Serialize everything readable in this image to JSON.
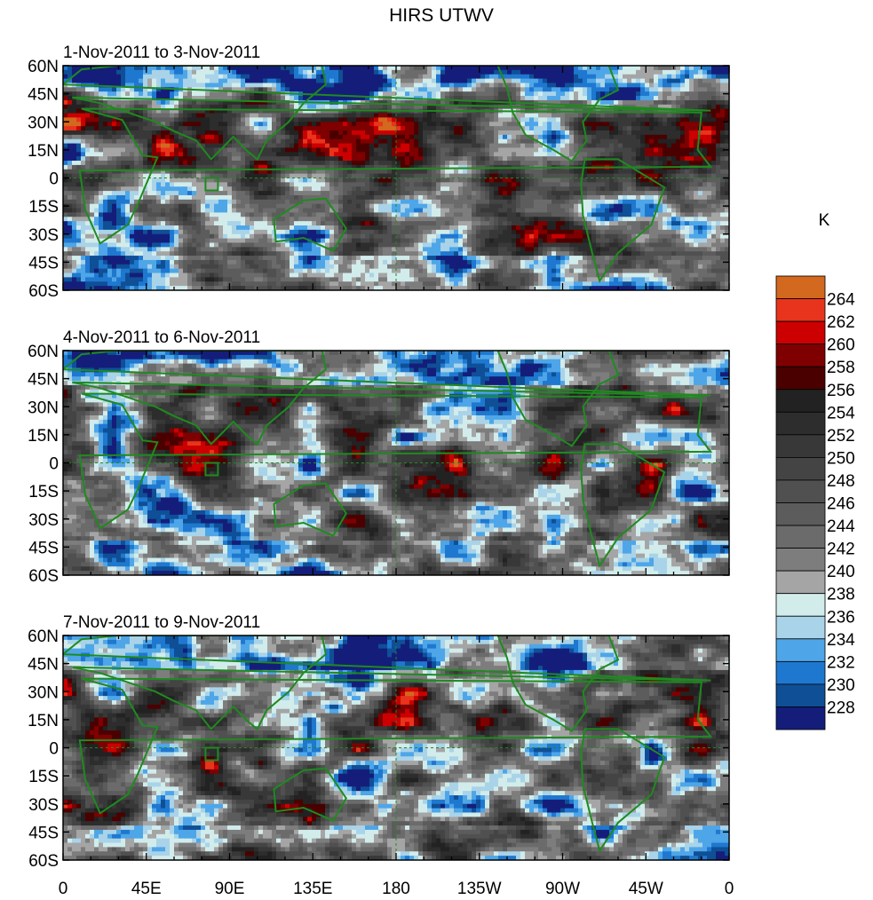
{
  "title": "HIRS UTWV",
  "panels": [
    {
      "label": "1-Nov-2011 to 3-Nov-2011",
      "seed": 3
    },
    {
      "label": "4-Nov-2011 to 6-Nov-2011",
      "seed": 7
    },
    {
      "label": "7-Nov-2011 to 9-Nov-2011",
      "seed": 11
    }
  ],
  "lat_labels": [
    "60N",
    "45N",
    "30N",
    "15N",
    "0",
    "15S",
    "30S",
    "45S",
    "60S"
  ],
  "lon_labels": [
    "0",
    "45E",
    "90E",
    "135E",
    "180",
    "135W",
    "90W",
    "45W",
    "0"
  ],
  "colorbar": {
    "unit": "K",
    "levels": [
      "264",
      "262",
      "260",
      "258",
      "256",
      "254",
      "252",
      "250",
      "248",
      "246",
      "244",
      "242",
      "240",
      "238",
      "236",
      "234",
      "232",
      "230",
      "228"
    ],
    "colors": [
      "#d2691e",
      "#e8341c",
      "#cc0000",
      "#7f0000",
      "#4b0000",
      "#222222",
      "#2d2d2d",
      "#383838",
      "#444444",
      "#505050",
      "#5c5c5c",
      "#6b6b6b",
      "#7d7d7d",
      "#a5a5a5",
      "#d2ecec",
      "#a9d3e8",
      "#4ea6e8",
      "#1f78cf",
      "#0f4f96",
      "#141e7a"
    ]
  }
}
